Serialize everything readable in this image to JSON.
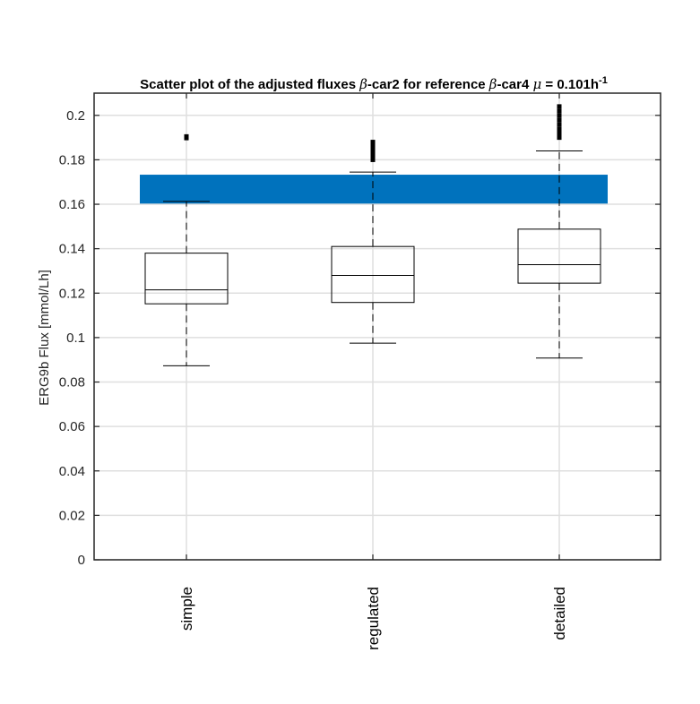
{
  "chart_data": {
    "type": "box",
    "title": {
      "prefix": "Scatter plot of the adjusted fluxes ",
      "greek1": "β",
      "part2": "-car2 for reference ",
      "greek2": "β",
      "part3": "-car4 ",
      "greek3": "μ",
      "part4": " = 0.101h",
      "superscript": "-1"
    },
    "xlabel": "",
    "ylabel": "ERG9b Flux [mmol/Lh]",
    "ylim": [
      0,
      0.21
    ],
    "yticks": [
      0,
      0.02,
      0.04,
      0.06,
      0.08,
      0.1,
      0.12,
      0.14,
      0.16,
      0.18,
      0.2
    ],
    "ytick_labels": [
      "0",
      "0.02",
      "0.04",
      "0.06",
      "0.08",
      "0.1",
      "0.12",
      "0.14",
      "0.16",
      "0.18",
      "0.2"
    ],
    "grid": true,
    "categories": [
      "simple",
      "regulated",
      "detailed"
    ],
    "boxes": [
      {
        "whisker_low": 0.0873,
        "q1": 0.1152,
        "median": 0.1215,
        "q3": 0.138,
        "whisker_high": 0.1613,
        "outliers": [
          0.1898,
          0.1905
        ]
      },
      {
        "whisker_low": 0.0975,
        "q1": 0.1158,
        "median": 0.128,
        "q3": 0.141,
        "whisker_high": 0.1745,
        "outliers": [
          0.18,
          0.181,
          0.182,
          0.183,
          0.184,
          0.185,
          0.186,
          0.187,
          0.188
        ]
      },
      {
        "whisker_low": 0.0908,
        "q1": 0.1245,
        "median": 0.1328,
        "q3": 0.1488,
        "whisker_high": 0.184,
        "outliers": [
          0.19,
          0.191,
          0.192,
          0.193,
          0.194,
          0.196,
          0.198,
          0.2,
          0.202,
          0.204
        ]
      }
    ],
    "reference_band": {
      "low": 0.1603,
      "high": 0.1733,
      "color": "#0072BD"
    },
    "colors": {
      "box_line": "#000000",
      "axis": "#262626",
      "grid": "#dfdfdf",
      "outlier": "#000000"
    }
  }
}
